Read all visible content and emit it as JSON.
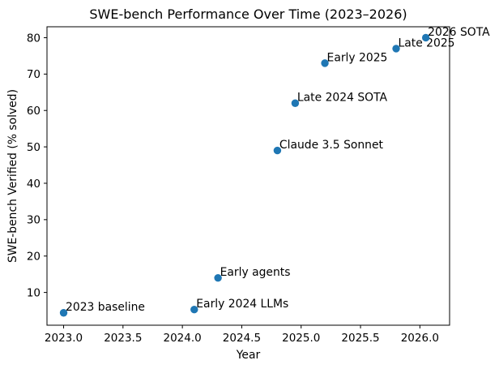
{
  "chart_data": {
    "type": "scatter",
    "title": "SWE-bench Performance Over Time (2023–2026)",
    "xlabel": "Year",
    "ylabel": "SWE-bench Verified (% solved)",
    "xlim": [
      2022.86,
      2026.25
    ],
    "ylim": [
      1,
      83
    ],
    "grid": false,
    "legend": "none",
    "marker_color": "#1f77b4",
    "text_color": "#000000",
    "background_color": "#ffffff",
    "x_ticks": {
      "values": [
        2023.0,
        2023.5,
        2024.0,
        2024.5,
        2025.0,
        2025.5,
        2026.0
      ],
      "labels": [
        "2023.0",
        "2023.5",
        "2024.0",
        "2024.5",
        "2025.0",
        "2025.5",
        "2026.0"
      ]
    },
    "y_ticks": {
      "values": [
        10,
        20,
        30,
        40,
        50,
        60,
        70,
        80
      ],
      "labels": [
        "10",
        "20",
        "30",
        "40",
        "50",
        "60",
        "70",
        "80"
      ]
    },
    "points": [
      {
        "x": 2023.0,
        "y": 4.4,
        "label": "2023 baseline"
      },
      {
        "x": 2024.1,
        "y": 5.3,
        "label": "Early 2024 LLMs"
      },
      {
        "x": 2024.3,
        "y": 14,
        "label": "Early agents"
      },
      {
        "x": 2024.8,
        "y": 49,
        "label": "Claude 3.5 Sonnet"
      },
      {
        "x": 2024.95,
        "y": 62,
        "label": "Late 2024 SOTA"
      },
      {
        "x": 2025.2,
        "y": 73,
        "label": "Early 2025"
      },
      {
        "x": 2025.8,
        "y": 77,
        "label": "Late 2025"
      },
      {
        "x": 2026.05,
        "y": 80,
        "label": "2026 SOTA"
      }
    ]
  }
}
